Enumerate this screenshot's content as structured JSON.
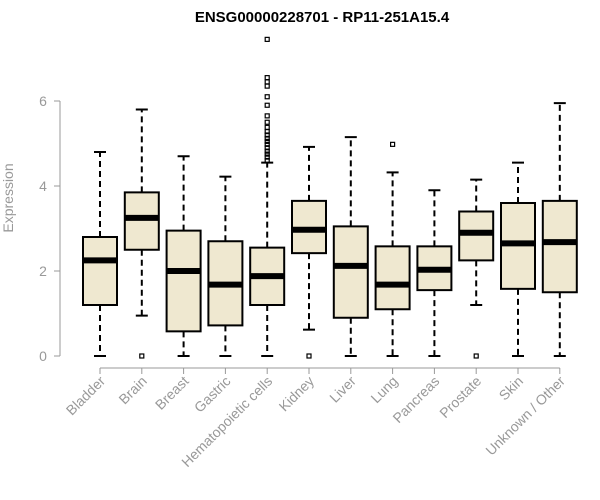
{
  "chart_data": {
    "type": "boxplot",
    "title": "ENSG00000228701 - RP11-251A15.4",
    "xlabel": "",
    "ylabel": "Expression",
    "ylim": [
      0,
      7.5
    ],
    "yticks": [
      0,
      2,
      4,
      6
    ],
    "grid": false,
    "box_fill": "#EFE8D0",
    "box_stroke": "#000000",
    "axis_color": "#999999",
    "categories": [
      "Bladder",
      "Brain",
      "Breast",
      "Gastric",
      "Hematopoietic cells",
      "Kidney",
      "Liver",
      "Lung",
      "Pancreas",
      "Prostate",
      "Skin",
      "Unknown / Other"
    ],
    "boxes": [
      {
        "category": "Bladder",
        "min": 0.0,
        "q1": 1.2,
        "median": 2.25,
        "q3": 2.8,
        "max": 4.8,
        "outliers": []
      },
      {
        "category": "Brain",
        "min": 0.95,
        "q1": 2.5,
        "median": 3.25,
        "q3": 3.85,
        "max": 5.8,
        "outliers": [
          0.0
        ]
      },
      {
        "category": "Breast",
        "min": 0.0,
        "q1": 0.58,
        "median": 2.0,
        "q3": 2.95,
        "max": 4.7,
        "outliers": []
      },
      {
        "category": "Gastric",
        "min": 0.0,
        "q1": 0.72,
        "median": 1.68,
        "q3": 2.7,
        "max": 4.22,
        "outliers": []
      },
      {
        "category": "Hematopoietic cells",
        "min": 0.0,
        "q1": 1.2,
        "median": 1.88,
        "q3": 2.55,
        "max": 4.55,
        "outliers": [
          4.6,
          4.68,
          4.75,
          4.82,
          4.9,
          4.98,
          5.05,
          5.12,
          5.2,
          5.28,
          5.38,
          5.5,
          5.65,
          5.9,
          6.1,
          6.35,
          6.45,
          6.55,
          7.45
        ]
      },
      {
        "category": "Kidney",
        "min": 0.62,
        "q1": 2.42,
        "median": 2.97,
        "q3": 3.65,
        "max": 4.92,
        "outliers": [
          0.0
        ]
      },
      {
        "category": "Liver",
        "min": 0.0,
        "q1": 0.9,
        "median": 2.12,
        "q3": 3.05,
        "max": 5.15,
        "outliers": []
      },
      {
        "category": "Lung",
        "min": 0.0,
        "q1": 1.1,
        "median": 1.68,
        "q3": 2.58,
        "max": 4.32,
        "outliers": [
          4.98
        ]
      },
      {
        "category": "Pancreas",
        "min": 0.0,
        "q1": 1.55,
        "median": 2.03,
        "q3": 2.58,
        "max": 3.9,
        "outliers": []
      },
      {
        "category": "Prostate",
        "min": 1.2,
        "q1": 2.25,
        "median": 2.9,
        "q3": 3.4,
        "max": 4.15,
        "outliers": [
          0.0
        ]
      },
      {
        "category": "Skin",
        "min": 0.0,
        "q1": 1.58,
        "median": 2.65,
        "q3": 3.6,
        "max": 4.55,
        "outliers": []
      },
      {
        "category": "Unknown / Other",
        "min": 0.0,
        "q1": 1.5,
        "median": 2.68,
        "q3": 3.65,
        "max": 5.95,
        "outliers": []
      }
    ]
  }
}
